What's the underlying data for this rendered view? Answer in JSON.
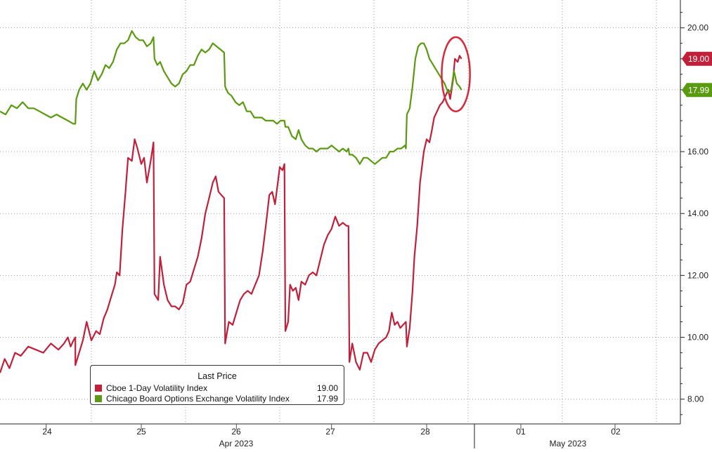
{
  "chart_data": {
    "type": "line",
    "ylim": [
      7.2,
      20.9
    ],
    "y_ticks": [
      "8.00",
      "10.00",
      "12.00",
      "14.00",
      "16.00",
      "18.00",
      "20.00"
    ],
    "x_day_labels": [
      "24",
      "25",
      "26",
      "27",
      "28",
      "01",
      "02"
    ],
    "x_month_labels": [
      "Apr 2023",
      "May 2023"
    ],
    "grid": true,
    "legend": {
      "title": "Last Price",
      "position": "bottom-left",
      "entries": [
        {
          "name": "Cboe 1-Day Volatility Index",
          "value": "19.00",
          "color": "#c0203a"
        },
        {
          "name": "Chicago Board Options Exchange Volatility Index",
          "value": "17.99",
          "color": "#5a9a10"
        }
      ]
    },
    "last_price_tags": [
      {
        "value": "19.00",
        "color": "#c0203a"
      },
      {
        "value": "17.99",
        "color": "#5a9a10"
      }
    ],
    "series": [
      {
        "name": "Cboe 1-Day Volatility Index",
        "color": "#c0203a",
        "points": [
          [
            0.0,
            8.85
          ],
          [
            0.05,
            9.3
          ],
          [
            0.1,
            9.0
          ],
          [
            0.16,
            9.5
          ],
          [
            0.22,
            9.4
          ],
          [
            0.3,
            9.7
          ],
          [
            0.38,
            9.6
          ],
          [
            0.46,
            9.5
          ],
          [
            0.54,
            9.8
          ],
          [
            0.62,
            9.6
          ],
          [
            0.68,
            9.8
          ],
          [
            0.72,
            10.0
          ],
          [
            0.75,
            9.7
          ],
          [
            0.78,
            9.9
          ],
          [
            0.8,
            10.0
          ],
          [
            0.8,
            9.1
          ],
          [
            0.84,
            9.5
          ],
          [
            0.88,
            9.9
          ],
          [
            0.92,
            10.5
          ],
          [
            0.97,
            9.9
          ],
          [
            1.02,
            10.2
          ],
          [
            1.06,
            10.1
          ],
          [
            1.1,
            10.6
          ],
          [
            1.14,
            10.9
          ],
          [
            1.18,
            11.3
          ],
          [
            1.22,
            11.7
          ],
          [
            1.24,
            12.1
          ],
          [
            1.27,
            12.0
          ],
          [
            1.3,
            13.5
          ],
          [
            1.33,
            14.6
          ],
          [
            1.36,
            15.8
          ],
          [
            1.4,
            15.7
          ],
          [
            1.43,
            16.4
          ],
          [
            1.46,
            16.1
          ],
          [
            1.5,
            15.6
          ],
          [
            1.53,
            15.8
          ],
          [
            1.56,
            15.0
          ],
          [
            1.6,
            15.7
          ],
          [
            1.63,
            16.3
          ],
          [
            1.64,
            11.4
          ],
          [
            1.68,
            11.2
          ],
          [
            1.7,
            12.6
          ],
          [
            1.74,
            11.7
          ],
          [
            1.78,
            11.2
          ],
          [
            1.82,
            11.0
          ],
          [
            1.86,
            11.0
          ],
          [
            1.9,
            10.9
          ],
          [
            1.94,
            11.1
          ],
          [
            1.98,
            11.7
          ],
          [
            2.02,
            11.8
          ],
          [
            2.06,
            12.2
          ],
          [
            2.1,
            12.6
          ],
          [
            2.14,
            13.2
          ],
          [
            2.18,
            14.0
          ],
          [
            2.22,
            14.5
          ],
          [
            2.26,
            15.0
          ],
          [
            2.29,
            15.2
          ],
          [
            2.32,
            14.7
          ],
          [
            2.35,
            14.6
          ],
          [
            2.38,
            14.5
          ],
          [
            2.39,
            9.8
          ],
          [
            2.43,
            10.5
          ],
          [
            2.47,
            10.4
          ],
          [
            2.51,
            10.8
          ],
          [
            2.55,
            11.2
          ],
          [
            2.59,
            11.4
          ],
          [
            2.63,
            11.5
          ],
          [
            2.67,
            11.4
          ],
          [
            2.71,
            11.7
          ],
          [
            2.75,
            12.0
          ],
          [
            2.79,
            12.8
          ],
          [
            2.83,
            13.8
          ],
          [
            2.86,
            14.6
          ],
          [
            2.89,
            14.7
          ],
          [
            2.92,
            14.3
          ],
          [
            2.95,
            15.0
          ],
          [
            2.97,
            15.5
          ],
          [
            3.0,
            15.4
          ],
          [
            3.02,
            15.6
          ],
          [
            3.03,
            10.2
          ],
          [
            3.06,
            10.5
          ],
          [
            3.08,
            11.7
          ],
          [
            3.11,
            11.5
          ],
          [
            3.14,
            11.6
          ],
          [
            3.17,
            11.2
          ],
          [
            3.2,
            11.8
          ],
          [
            3.24,
            11.7
          ],
          [
            3.28,
            12.0
          ],
          [
            3.32,
            12.1
          ],
          [
            3.36,
            12.0
          ],
          [
            3.4,
            12.5
          ],
          [
            3.44,
            13.0
          ],
          [
            3.48,
            13.3
          ],
          [
            3.52,
            13.5
          ],
          [
            3.56,
            13.9
          ],
          [
            3.6,
            13.6
          ],
          [
            3.64,
            13.7
          ],
          [
            3.68,
            13.6
          ],
          [
            3.7,
            13.6
          ],
          [
            3.71,
            9.2
          ],
          [
            3.74,
            9.8
          ],
          [
            3.78,
            9.2
          ],
          [
            3.82,
            8.95
          ],
          [
            3.86,
            9.5
          ],
          [
            3.9,
            9.5
          ],
          [
            3.94,
            9.2
          ],
          [
            3.98,
            9.6
          ],
          [
            4.02,
            9.8
          ],
          [
            4.06,
            9.9
          ],
          [
            4.1,
            10.0
          ],
          [
            4.13,
            10.2
          ],
          [
            4.16,
            10.8
          ],
          [
            4.19,
            10.4
          ],
          [
            4.22,
            10.5
          ],
          [
            4.25,
            10.3
          ],
          [
            4.28,
            10.4
          ],
          [
            4.31,
            10.5
          ],
          [
            4.32,
            9.7
          ],
          [
            4.35,
            10.3
          ],
          [
            4.38,
            11.5
          ],
          [
            4.4,
            12.6
          ],
          [
            4.43,
            13.6
          ],
          [
            4.46,
            15.0
          ],
          [
            4.5,
            16.0
          ],
          [
            4.53,
            16.4
          ],
          [
            4.56,
            16.3
          ],
          [
            4.58,
            16.6
          ],
          [
            4.61,
            17.1
          ],
          [
            4.64,
            17.3
          ],
          [
            4.67,
            17.5
          ],
          [
            4.7,
            17.6
          ],
          [
            4.73,
            17.8
          ],
          [
            4.76,
            18.0
          ],
          [
            4.78,
            17.7
          ],
          [
            4.81,
            18.3
          ],
          [
            4.83,
            19.0
          ],
          [
            4.86,
            18.9
          ],
          [
            4.88,
            19.1
          ],
          [
            4.9,
            19.0
          ]
        ]
      },
      {
        "name": "Chicago Board Options Exchange Volatility Index",
        "color": "#5a9a10",
        "points": [
          [
            0.0,
            17.3
          ],
          [
            0.06,
            17.2
          ],
          [
            0.12,
            17.5
          ],
          [
            0.18,
            17.4
          ],
          [
            0.24,
            17.6
          ],
          [
            0.3,
            17.4
          ],
          [
            0.36,
            17.4
          ],
          [
            0.42,
            17.3
          ],
          [
            0.48,
            17.2
          ],
          [
            0.54,
            17.1
          ],
          [
            0.6,
            17.2
          ],
          [
            0.66,
            17.1
          ],
          [
            0.72,
            17.0
          ],
          [
            0.78,
            16.9
          ],
          [
            0.8,
            16.9
          ],
          [
            0.81,
            17.7
          ],
          [
            0.84,
            18.0
          ],
          [
            0.88,
            18.2
          ],
          [
            0.92,
            18.0
          ],
          [
            0.96,
            18.2
          ],
          [
            1.0,
            18.6
          ],
          [
            1.04,
            18.3
          ],
          [
            1.08,
            18.5
          ],
          [
            1.12,
            18.8
          ],
          [
            1.16,
            18.7
          ],
          [
            1.2,
            18.9
          ],
          [
            1.24,
            19.3
          ],
          [
            1.28,
            19.5
          ],
          [
            1.32,
            19.5
          ],
          [
            1.36,
            19.6
          ],
          [
            1.4,
            19.9
          ],
          [
            1.44,
            19.7
          ],
          [
            1.48,
            19.6
          ],
          [
            1.52,
            19.6
          ],
          [
            1.56,
            19.4
          ],
          [
            1.6,
            19.5
          ],
          [
            1.63,
            19.7
          ],
          [
            1.64,
            19.0
          ],
          [
            1.67,
            18.8
          ],
          [
            1.7,
            18.9
          ],
          [
            1.74,
            18.6
          ],
          [
            1.78,
            18.4
          ],
          [
            1.82,
            18.2
          ],
          [
            1.86,
            18.1
          ],
          [
            1.9,
            18.2
          ],
          [
            1.94,
            18.5
          ],
          [
            1.98,
            18.6
          ],
          [
            2.02,
            18.8
          ],
          [
            2.06,
            18.8
          ],
          [
            2.1,
            19.1
          ],
          [
            2.14,
            19.3
          ],
          [
            2.18,
            19.2
          ],
          [
            2.22,
            19.3
          ],
          [
            2.26,
            19.5
          ],
          [
            2.3,
            19.4
          ],
          [
            2.34,
            19.3
          ],
          [
            2.38,
            19.2
          ],
          [
            2.39,
            18.1
          ],
          [
            2.42,
            17.9
          ],
          [
            2.46,
            17.8
          ],
          [
            2.5,
            17.6
          ],
          [
            2.54,
            17.5
          ],
          [
            2.58,
            17.6
          ],
          [
            2.62,
            17.3
          ],
          [
            2.66,
            17.3
          ],
          [
            2.7,
            17.1
          ],
          [
            2.74,
            17.1
          ],
          [
            2.78,
            17.1
          ],
          [
            2.82,
            17.0
          ],
          [
            2.86,
            17.0
          ],
          [
            2.9,
            17.0
          ],
          [
            2.94,
            16.9
          ],
          [
            2.98,
            17.0
          ],
          [
            3.02,
            17.0
          ],
          [
            3.03,
            16.8
          ],
          [
            3.06,
            16.8
          ],
          [
            3.1,
            16.5
          ],
          [
            3.14,
            16.4
          ],
          [
            3.17,
            16.7
          ],
          [
            3.2,
            16.4
          ],
          [
            3.24,
            16.2
          ],
          [
            3.28,
            16.1
          ],
          [
            3.32,
            16.1
          ],
          [
            3.36,
            16.0
          ],
          [
            3.4,
            16.1
          ],
          [
            3.44,
            16.1
          ],
          [
            3.48,
            16.1
          ],
          [
            3.52,
            16.2
          ],
          [
            3.56,
            16.1
          ],
          [
            3.6,
            16.0
          ],
          [
            3.64,
            16.1
          ],
          [
            3.68,
            16.0
          ],
          [
            3.7,
            16.1
          ],
          [
            3.71,
            15.9
          ],
          [
            3.74,
            15.9
          ],
          [
            3.78,
            15.8
          ],
          [
            3.82,
            15.6
          ],
          [
            3.86,
            15.8
          ],
          [
            3.9,
            15.8
          ],
          [
            3.94,
            15.7
          ],
          [
            3.98,
            15.6
          ],
          [
            4.02,
            15.7
          ],
          [
            4.06,
            15.8
          ],
          [
            4.1,
            15.8
          ],
          [
            4.14,
            16.0
          ],
          [
            4.18,
            16.0
          ],
          [
            4.22,
            16.1
          ],
          [
            4.26,
            16.1
          ],
          [
            4.3,
            16.2
          ],
          [
            4.31,
            16.1
          ],
          [
            4.32,
            17.2
          ],
          [
            4.35,
            17.4
          ],
          [
            4.38,
            18.1
          ],
          [
            4.41,
            19.0
          ],
          [
            4.44,
            19.4
          ],
          [
            4.47,
            19.5
          ],
          [
            4.5,
            19.5
          ],
          [
            4.53,
            19.3
          ],
          [
            4.56,
            19.0
          ],
          [
            4.6,
            18.8
          ],
          [
            4.64,
            18.6
          ],
          [
            4.68,
            18.4
          ],
          [
            4.72,
            18.2
          ],
          [
            4.76,
            17.9
          ],
          [
            4.79,
            18.0
          ],
          [
            4.82,
            18.6
          ],
          [
            4.85,
            18.2
          ],
          [
            4.88,
            18.1
          ],
          [
            4.9,
            17.99
          ]
        ]
      }
    ],
    "annotations": [
      {
        "type": "ellipse",
        "color": "#d42a3a",
        "x_center": 4.84,
        "y_center": 18.5,
        "rx_days": 0.15,
        "ry_value": 1.2
      }
    ]
  }
}
